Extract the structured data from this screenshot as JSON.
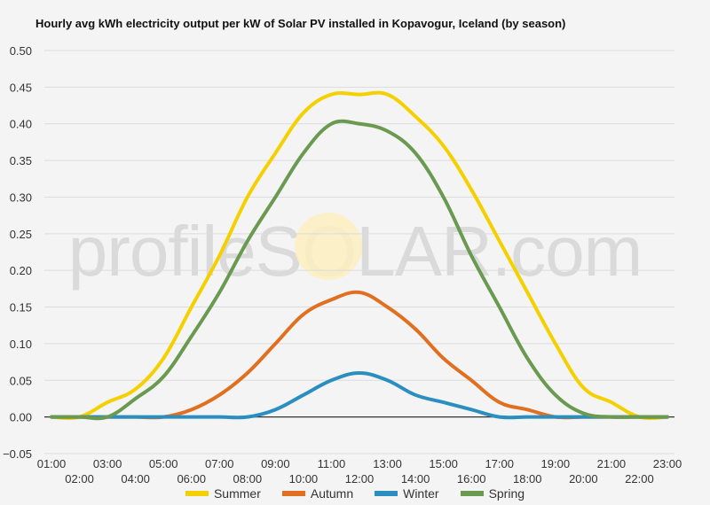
{
  "chart_data": {
    "type": "line",
    "title": "Hourly avg kWh electricity output per kW of Solar PV installed in Kopavogur, Iceland (by season)",
    "watermark": "profileSOLAR.com",
    "ylim": [
      -0.05,
      0.5
    ],
    "yticks": [
      "0.50",
      "0.45",
      "0.40",
      "0.35",
      "0.30",
      "0.25",
      "0.20",
      "0.15",
      "0.10",
      "0.05",
      "0.00",
      "−0.05"
    ],
    "x": [
      "01:00",
      "02:00",
      "03:00",
      "04:00",
      "05:00",
      "06:00",
      "07:00",
      "08:00",
      "09:00",
      "10:00",
      "11:00",
      "12:00",
      "13:00",
      "14:00",
      "15:00",
      "16:00",
      "17:00",
      "18:00",
      "19:00",
      "20:00",
      "21:00",
      "22:00",
      "23:00"
    ],
    "series": [
      {
        "name": "Summer",
        "color": "#f5d000",
        "values": [
          0,
          0,
          0.02,
          0.038,
          0.08,
          0.15,
          0.22,
          0.3,
          0.36,
          0.415,
          0.44,
          0.44,
          0.44,
          0.41,
          0.37,
          0.31,
          0.24,
          0.17,
          0.1,
          0.04,
          0.02,
          0,
          0
        ]
      },
      {
        "name": "Autumn",
        "color": "#e07020",
        "values": [
          0,
          0,
          0,
          0,
          0,
          0.01,
          0.03,
          0.06,
          0.1,
          0.14,
          0.16,
          0.17,
          0.15,
          0.12,
          0.08,
          0.05,
          0.02,
          0.01,
          0,
          0,
          0,
          0,
          0
        ]
      },
      {
        "name": "Winter",
        "color": "#2a8fc0",
        "values": [
          0,
          0,
          0,
          0,
          0,
          0,
          0,
          0,
          0.01,
          0.03,
          0.05,
          0.06,
          0.05,
          0.03,
          0.02,
          0.01,
          0,
          0,
          0,
          0,
          0,
          0,
          0
        ]
      },
      {
        "name": "Spring",
        "color": "#6a9a50",
        "values": [
          0,
          0,
          0,
          0.025,
          0.055,
          0.11,
          0.17,
          0.24,
          0.3,
          0.36,
          0.4,
          0.4,
          0.39,
          0.36,
          0.3,
          0.22,
          0.15,
          0.08,
          0.03,
          0.005,
          0,
          0,
          0
        ]
      }
    ]
  }
}
